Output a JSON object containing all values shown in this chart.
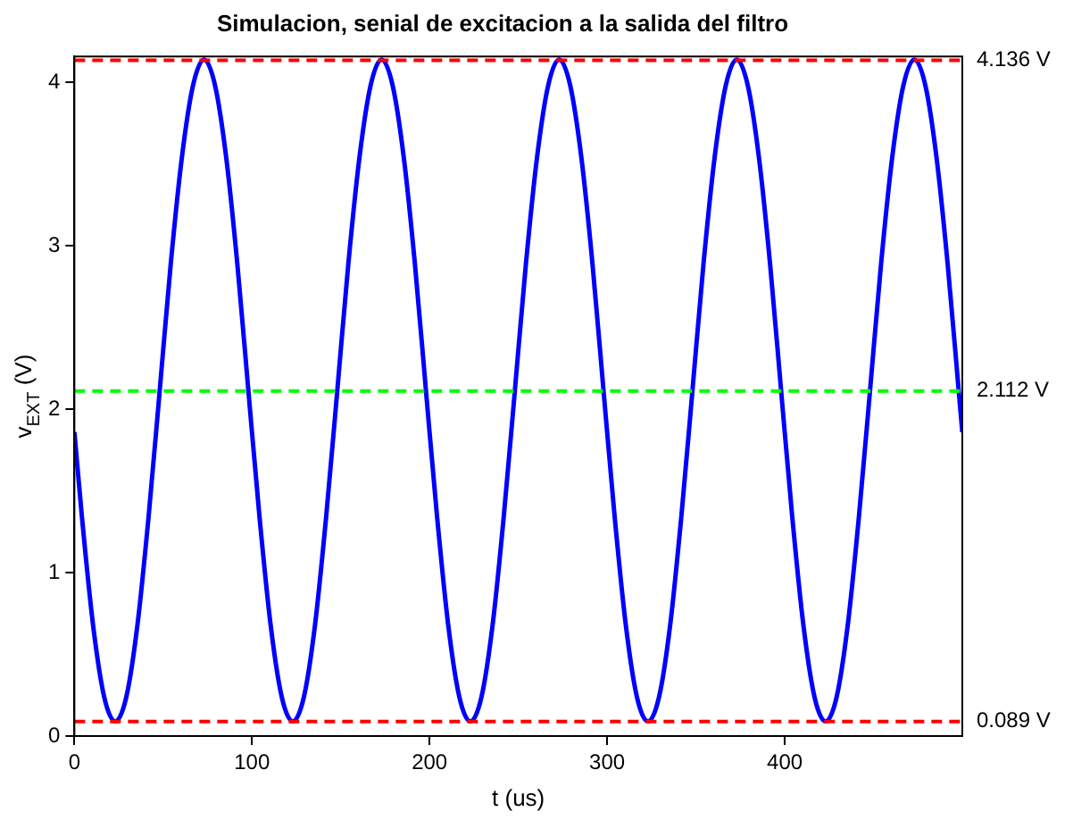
{
  "chart_data": {
    "type": "line",
    "title": "Simulacion, senial de excitacion a la salida del filtro",
    "xlabel": "t (us)",
    "ylabel": "v$_{EXT}$ (V)",
    "xlim": [
      0,
      500
    ],
    "xticks": [
      0,
      100,
      200,
      300,
      400
    ],
    "ylim": [
      0,
      4.16
    ],
    "yticks": [
      0,
      1,
      2,
      3,
      4
    ],
    "grid": false,
    "legend": false,
    "marker": "none",
    "line_style": "solid",
    "series": [
      {
        "color": "#0000ff",
        "x": [
          0,
          4.25,
          10.5,
          16.75,
          23,
          29.25,
          35.5,
          41.75,
          48,
          54.25,
          60.5,
          66.75,
          73,
          79.25,
          85.5,
          91.75,
          98,
          104.25,
          110.5,
          116.75,
          123,
          129.25,
          135.5,
          141.75,
          148,
          154.25,
          160.5,
          166.75,
          173,
          179.25,
          185.5,
          191.75,
          198,
          204.25,
          210.5,
          216.75,
          223,
          229.25,
          235.5,
          241.75,
          248,
          254.25,
          260.5,
          266.75,
          273,
          279.25,
          285.5,
          291.75,
          298,
          304.25,
          310.5,
          316.75,
          323,
          329.25,
          335.5,
          341.75,
          348,
          354.25,
          360.5,
          366.75,
          373,
          379.25,
          385.5,
          391.75,
          398,
          404.25,
          410.5,
          416.75,
          423,
          429.25,
          435.5,
          441.75,
          448,
          454.25,
          460.5,
          466.75,
          473,
          479.25,
          485.5,
          491.75,
          498,
          500
        ],
        "values": [
          1.86,
          1.34,
          0.68,
          0.24,
          0.09,
          0.24,
          0.68,
          1.34,
          2.11,
          2.89,
          3.54,
          3.98,
          4.14,
          3.98,
          3.54,
          2.89,
          2.11,
          1.34,
          0.68,
          0.24,
          0.09,
          0.24,
          0.68,
          1.34,
          2.11,
          2.89,
          3.54,
          3.98,
          4.14,
          3.98,
          3.54,
          2.89,
          2.11,
          1.34,
          0.68,
          0.24,
          0.09,
          0.24,
          0.68,
          1.34,
          2.11,
          2.89,
          3.54,
          3.98,
          4.14,
          3.98,
          3.54,
          2.89,
          2.11,
          1.34,
          0.68,
          0.24,
          0.09,
          0.24,
          0.68,
          1.34,
          2.11,
          2.89,
          3.54,
          3.98,
          4.14,
          3.98,
          3.54,
          2.89,
          2.11,
          1.34,
          0.68,
          0.24,
          0.09,
          0.24,
          0.68,
          1.34,
          2.11,
          2.89,
          3.54,
          3.98,
          4.14,
          3.98,
          3.54,
          2.89,
          2.11,
          1.86
        ]
      }
    ],
    "ref_lines": [
      {
        "axis": "y",
        "value": 4.136,
        "label": "4.136 V",
        "color": "#ff0000",
        "line_style": "dashed"
      },
      {
        "axis": "y",
        "value": 2.112,
        "label": "2.112 V",
        "color": "#00ff00",
        "line_style": "dashed"
      },
      {
        "axis": "y",
        "value": 0.089,
        "label": "0.089 V",
        "color": "#ff0000",
        "line_style": "dashed"
      }
    ]
  }
}
